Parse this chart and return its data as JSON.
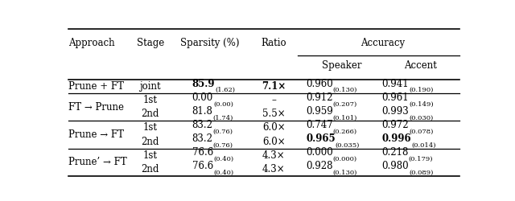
{
  "rows": [
    {
      "approach": "Prune + FT",
      "stage": "joint",
      "sparsity_main": "85.9",
      "sparsity_sub": "(1.62)",
      "sparsity_bold": true,
      "ratio_main": "7.1×",
      "ratio_bold": true,
      "speaker_main": "0.960",
      "speaker_sub": "(0.130)",
      "speaker_bold": false,
      "accent_main": "0.941",
      "accent_sub": "(0.190)",
      "accent_bold": false,
      "group": 0
    },
    {
      "approach": "FT → Prune",
      "stage": "1st",
      "sparsity_main": "0.00",
      "sparsity_sub": "(0.00)",
      "sparsity_bold": false,
      "ratio_main": "–",
      "ratio_bold": false,
      "speaker_main": "0.912",
      "speaker_sub": "(0.207)",
      "speaker_bold": false,
      "accent_main": "0.961",
      "accent_sub": "(0.149)",
      "accent_bold": false,
      "group": 1
    },
    {
      "approach": "",
      "stage": "2nd",
      "sparsity_main": "81.8",
      "sparsity_sub": "(1.74)",
      "sparsity_bold": false,
      "ratio_main": "5.5×",
      "ratio_bold": false,
      "speaker_main": "0.959",
      "speaker_sub": "(0.101)",
      "speaker_bold": false,
      "accent_main": "0.993",
      "accent_sub": "(0.030)",
      "accent_bold": false,
      "group": 1
    },
    {
      "approach": "Prune → FT",
      "stage": "1st",
      "sparsity_main": "83.2",
      "sparsity_sub": "(0.76)",
      "sparsity_bold": false,
      "ratio_main": "6.0×",
      "ratio_bold": false,
      "speaker_main": "0.747",
      "speaker_sub": "(0.266)",
      "speaker_bold": false,
      "accent_main": "0.972",
      "accent_sub": "(0.078)",
      "accent_bold": false,
      "group": 2
    },
    {
      "approach": "",
      "stage": "2nd",
      "sparsity_main": "83.2",
      "sparsity_sub": "(0.76)",
      "sparsity_bold": false,
      "ratio_main": "6.0×",
      "ratio_bold": false,
      "speaker_main": "0.965",
      "speaker_sub": "(0.035)",
      "speaker_bold": true,
      "accent_main": "0.996",
      "accent_sub": "(0.014)",
      "accent_bold": true,
      "group": 2
    },
    {
      "approach": "Prune’ → FT",
      "stage": "1st",
      "sparsity_main": "76.6",
      "sparsity_sub": "(0.40)",
      "sparsity_bold": false,
      "ratio_main": "4.3×",
      "ratio_bold": false,
      "speaker_main": "0.000",
      "speaker_sub": "(0.000)",
      "speaker_bold": false,
      "accent_main": "0.218",
      "accent_sub": "(0.179)",
      "accent_bold": false,
      "group": 3
    },
    {
      "approach": "",
      "stage": "2nd",
      "sparsity_main": "76.6",
      "sparsity_sub": "(0.40)",
      "sparsity_bold": false,
      "ratio_main": "4.3×",
      "ratio_bold": false,
      "speaker_main": "0.928",
      "speaker_sub": "(0.130)",
      "speaker_bold": false,
      "accent_main": "0.980",
      "accent_sub": "(0.089)",
      "accent_bold": false,
      "group": 3
    }
  ],
  "approach_group_rows": {
    "0": [
      0
    ],
    "1": [
      1,
      2
    ],
    "2": [
      3,
      4
    ],
    "3": [
      5,
      6
    ]
  },
  "fig_bg": "#ffffff",
  "text_color": "#000000",
  "main_fs": 8.5,
  "sub_fs": 6.0,
  "col_positions": {
    "approach": 0.01,
    "stage": 0.215,
    "sparsity": 0.32,
    "ratio": 0.505,
    "speaker": 0.605,
    "accent": 0.795
  }
}
